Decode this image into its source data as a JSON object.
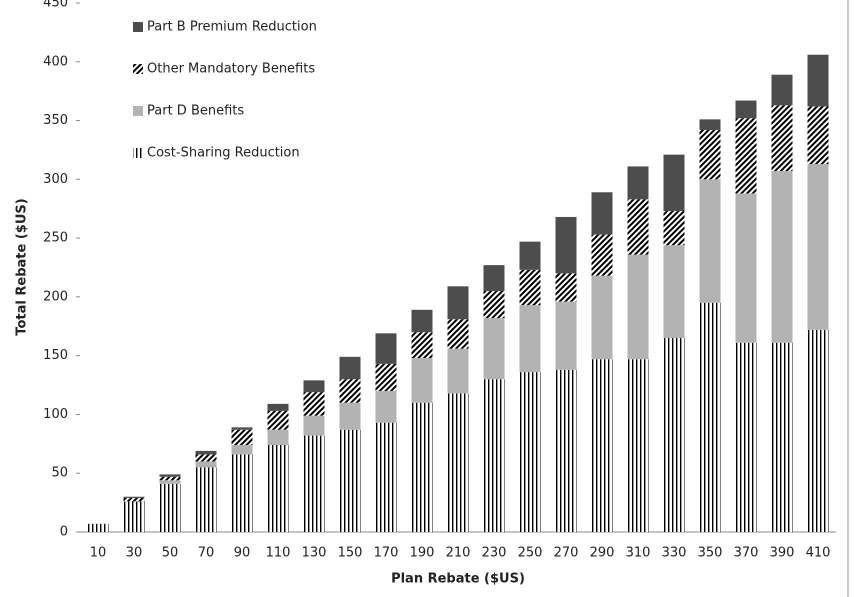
{
  "chart_data": {
    "type": "stacked-bar",
    "x_label": "Plan Rebate ($US)",
    "y_label": "Total Rebate ($US)",
    "categories": [
      10,
      30,
      50,
      70,
      90,
      110,
      130,
      150,
      170,
      190,
      210,
      230,
      250,
      270,
      290,
      310,
      330,
      350,
      370,
      390,
      410
    ],
    "series": [
      {
        "name": "Cost-Sharing Reduction",
        "color": "#000000",
        "pattern": "vertical",
        "values": [
          7,
          26,
          41,
          55,
          66,
          74,
          82,
          87,
          93,
          110,
          118,
          130,
          136,
          138,
          147,
          147,
          165,
          195,
          161,
          161,
          172
        ]
      },
      {
        "name": "Part D Benefits",
        "color": "#b3b3b3",
        "values": [
          0,
          0,
          3,
          5,
          8,
          13,
          17,
          23,
          27,
          38,
          38,
          52,
          57,
          58,
          71,
          89,
          79,
          105,
          127,
          146,
          141
        ]
      },
      {
        "name": "Other Mandatory Benefits",
        "color": "#000000",
        "pattern": "diagonal",
        "values": [
          0,
          3,
          3,
          6,
          13,
          16,
          20,
          20,
          23,
          22,
          25,
          23,
          30,
          24,
          35,
          47,
          29,
          42,
          64,
          56,
          49
        ]
      },
      {
        "name": "Part B Premium Reduction",
        "color": "#4d4d4d",
        "values": [
          0,
          1,
          2,
          3,
          2,
          6,
          10,
          19,
          26,
          19,
          28,
          22,
          24,
          48,
          36,
          28,
          48,
          9,
          15,
          26,
          44
        ]
      }
    ],
    "ylim": [
      0,
      450
    ],
    "yticks": [
      0,
      50,
      100,
      150,
      200,
      250,
      300,
      350,
      400,
      450
    ],
    "grid": false,
    "legend": "top-left"
  }
}
